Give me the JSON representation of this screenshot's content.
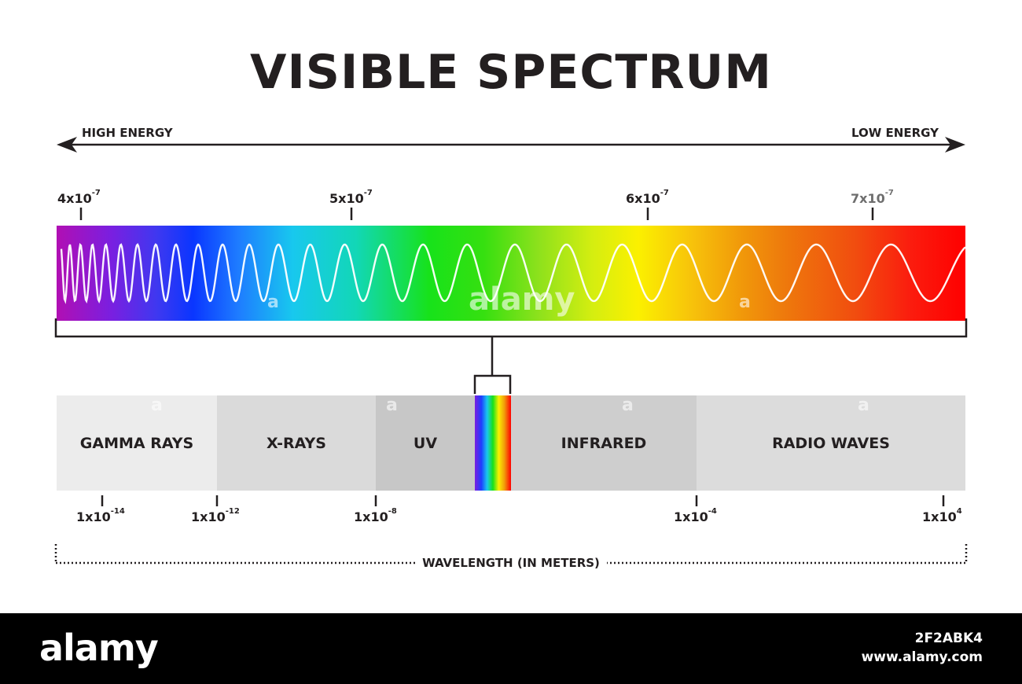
{
  "title": "VISIBLE SPECTRUM",
  "energy": {
    "high": "HIGH ENERGY",
    "low": "LOW ENERGY"
  },
  "visible_ticks": [
    {
      "base": "4x10",
      "exp": "-7"
    },
    {
      "base": "5x10",
      "exp": "-7"
    },
    {
      "base": "6x10",
      "exp": "-7"
    },
    {
      "base": "7x10",
      "exp": "-7"
    }
  ],
  "bands": [
    {
      "label": "GAMMA RAYS",
      "color": "#ececec"
    },
    {
      "label": "X-RAYS",
      "color": "#dadada"
    },
    {
      "label": "UV",
      "color": "#c7c7c7"
    },
    {
      "label": "INFRARED",
      "color": "#cecece"
    },
    {
      "label": "RADIO WAVES",
      "color": "#dcdcdc"
    }
  ],
  "em_ticks": [
    {
      "base": "1x10",
      "exp": "-14"
    },
    {
      "base": "1x10",
      "exp": "-12"
    },
    {
      "base": "1x10",
      "exp": "-8"
    },
    {
      "base": "1x10",
      "exp": "-4"
    },
    {
      "base": "1x10",
      "exp": "4"
    }
  ],
  "axis_label": "WAVELENGTH (IN METERS)",
  "watermark": {
    "main": "alamy",
    "small": "a"
  },
  "footer": {
    "logo": "alamy",
    "image_id": "2F2ABK4",
    "site": "www.alamy.com"
  }
}
